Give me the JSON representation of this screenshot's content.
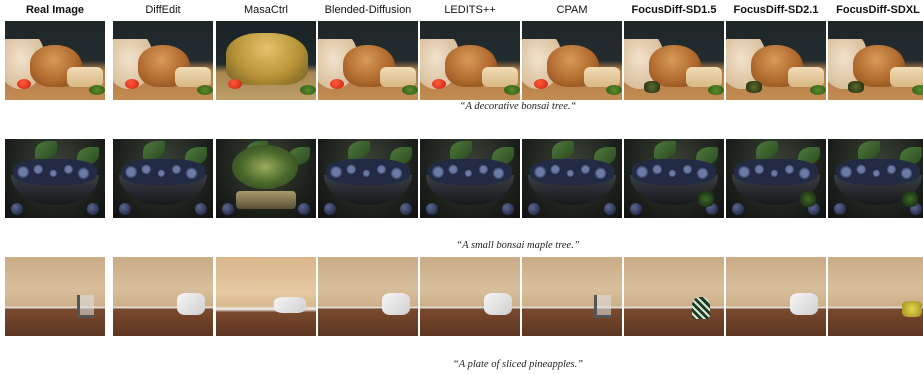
{
  "figure": {
    "columns": [
      {
        "label": "Real Image",
        "bold": true
      },
      {
        "label": "DiffEdit",
        "bold": false
      },
      {
        "label": "MasaCtrl",
        "bold": false
      },
      {
        "label": "Blended-Diffusion",
        "bold": false
      },
      {
        "label": "LEDITS++",
        "bold": false
      },
      {
        "label": "CPAM",
        "bold": false
      },
      {
        "label": "FocusDiff-SD1.5",
        "bold": true
      },
      {
        "label": "FocusDiff-SD2.1",
        "bold": true
      },
      {
        "label": "FocusDiff-SDXL",
        "bold": true
      }
    ],
    "rows": [
      {
        "scene": "bread",
        "caption": "“A decorative bonsai tree.“"
      },
      {
        "scene": "blueberries",
        "caption": "“A small bonsai maple tree.”"
      },
      {
        "scene": "room",
        "caption": "“A plate of sliced pineapples.”"
      }
    ]
  }
}
